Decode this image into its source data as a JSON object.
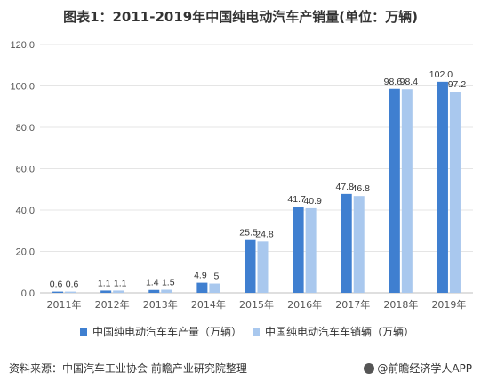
{
  "title": "图表1：2011-2019年中国纯电动汽车产销量(单位：万辆)",
  "source": "资料来源：中国汽车工业协会 前瞻产业研究院整理",
  "brand": "@前瞻经济学人APP",
  "colors": {
    "production": "#3f7fd0",
    "sales": "#a9c8ee",
    "grid": "#e5e5e5",
    "axis": "#bfbfbf"
  },
  "chart_data": {
    "type": "bar",
    "title": "图表1：2011-2019年中国纯电动汽车产销量(单位：万辆)",
    "categories": [
      "2011年",
      "2012年",
      "2013年",
      "2014年",
      "2015年",
      "2016年",
      "2017年",
      "2018年",
      "2019年"
    ],
    "series": [
      {
        "name": "中国纯电动汽车车产量（万辆）",
        "values": [
          0.6,
          1.1,
          1.4,
          4.9,
          25.5,
          41.7,
          47.8,
          98.6,
          102.0
        ]
      },
      {
        "name": "中国纯电动汽车车销辆（万辆）",
        "values": [
          0.6,
          1.1,
          1.5,
          4.5,
          24.8,
          40.9,
          46.8,
          98.4,
          97.2
        ]
      }
    ],
    "value_labels": [
      [
        "0.6",
        "1.1",
        "1.4",
        "4.9",
        "25.5",
        "41.7",
        "47.8",
        "98.6",
        "102.0"
      ],
      [
        "0.6",
        "1.1",
        "1.5",
        "5",
        "24.8",
        "40.9",
        "46.8",
        "98.4",
        "97.2"
      ]
    ],
    "yticks": [
      "0.0",
      "20.0",
      "40.0",
      "60.0",
      "80.0",
      "100.0",
      "120.0"
    ],
    "ylim": [
      0,
      120
    ],
    "grid": true,
    "legend": "bottom"
  }
}
